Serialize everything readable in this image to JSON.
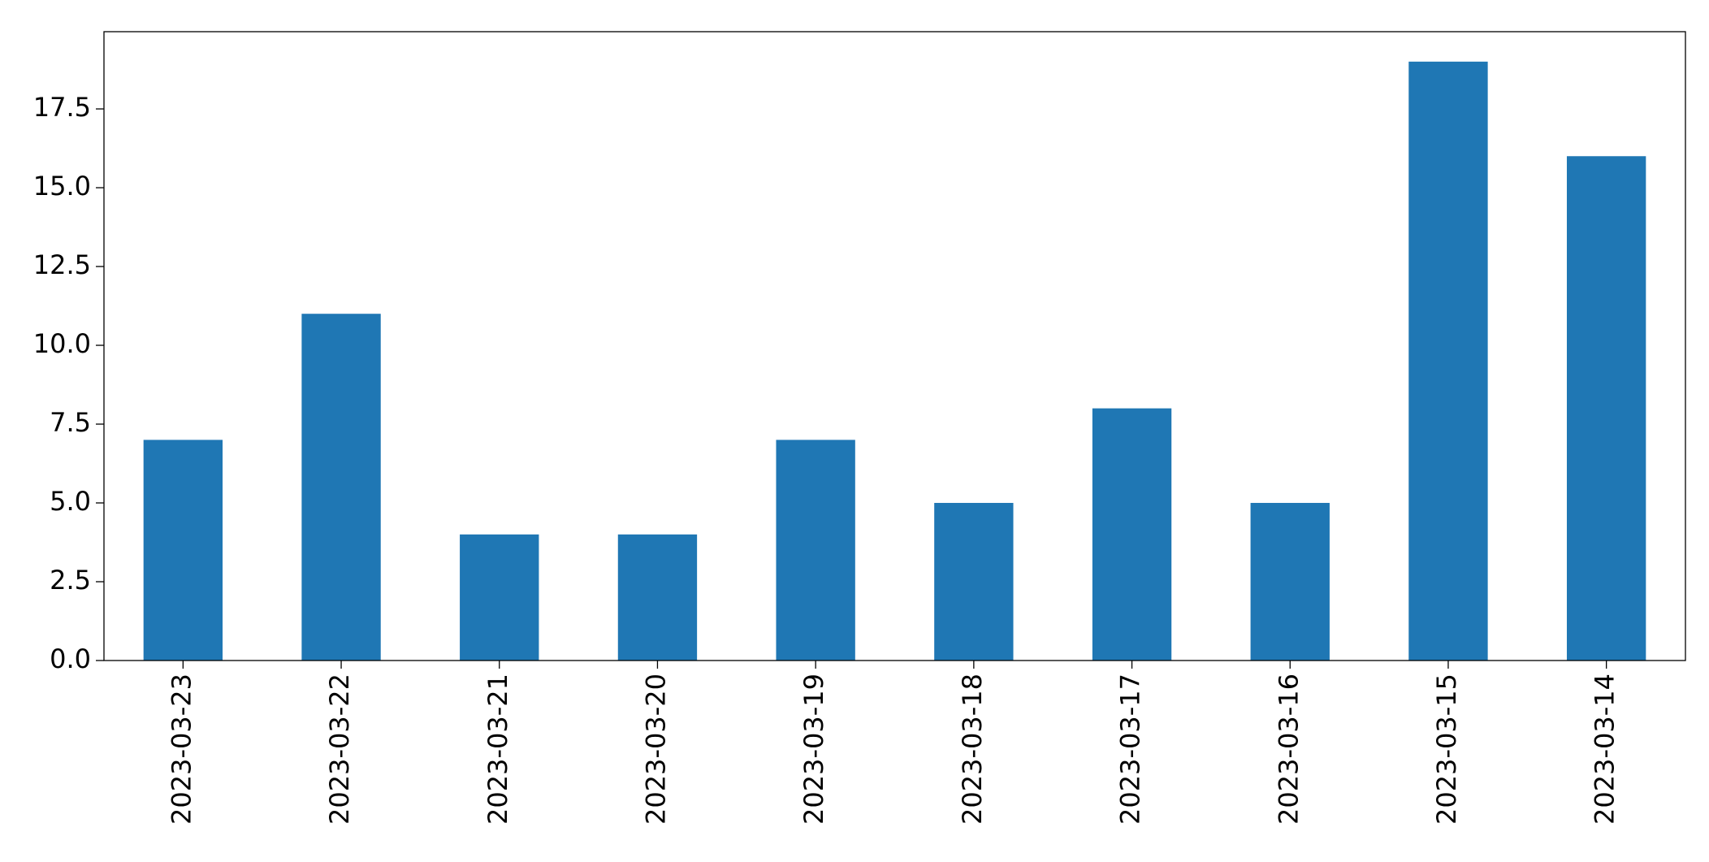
{
  "chart_data": {
    "type": "bar",
    "categories": [
      "2023-03-23",
      "2023-03-22",
      "2023-03-21",
      "2023-03-20",
      "2023-03-19",
      "2023-03-18",
      "2023-03-17",
      "2023-03-16",
      "2023-03-15",
      "2023-03-14"
    ],
    "values": [
      7,
      11,
      4,
      4,
      7,
      5,
      8,
      5,
      19,
      16
    ],
    "color": "#1f77b4",
    "ylim": [
      0,
      19.95
    ],
    "yticks": [
      {
        "value": 0,
        "label": "0.0"
      },
      2.5,
      {
        "value": 5,
        "label": "5.0"
      },
      7.5,
      {
        "value": 10,
        "label": "10.0"
      },
      12.5,
      {
        "value": 15,
        "label": "15.0"
      },
      17.5
    ],
    "grid": false
  }
}
